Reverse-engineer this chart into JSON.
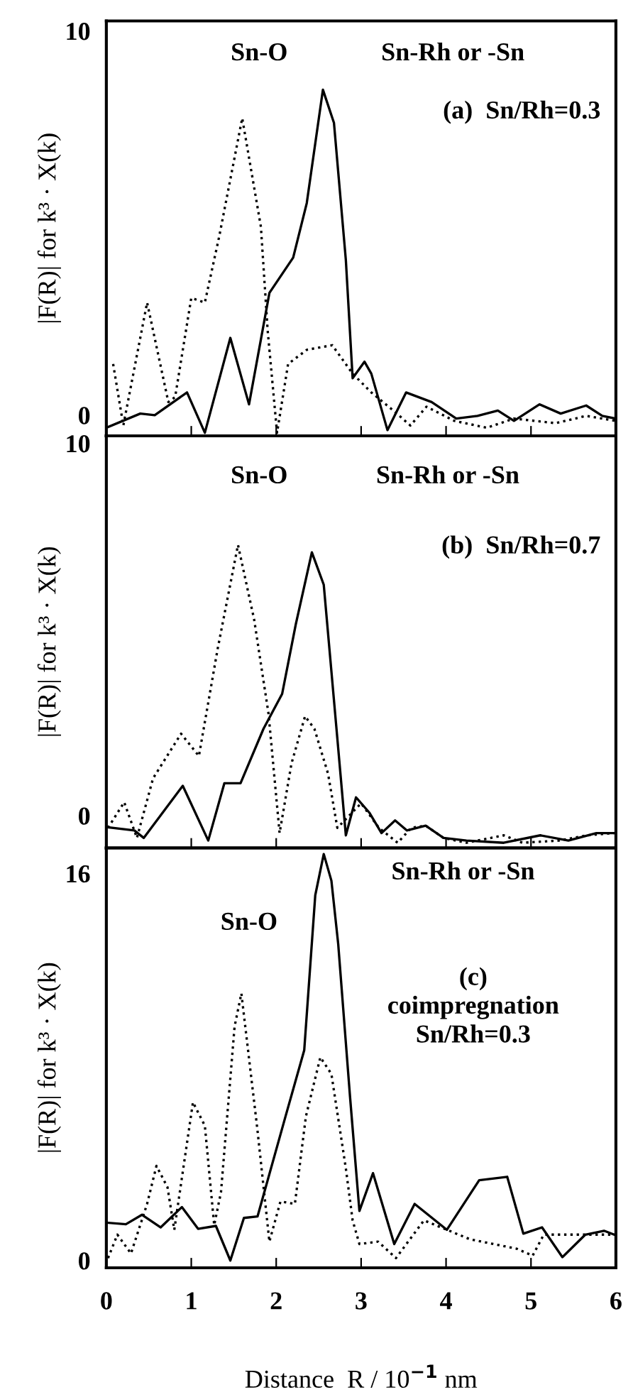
{
  "chart_data": [
    {
      "type": "line",
      "ylabel": "|F(R)| for k³ · X(k)",
      "xlim": [
        0,
        6
      ],
      "xticks": [
        0,
        1,
        2,
        3,
        4,
        5,
        6
      ],
      "ylim": [
        -0.54,
        10.26
      ],
      "yticks": [
        0,
        10
      ],
      "tick_labels": "y",
      "annotations": [
        "Sn-O",
        "Sn-Rh or -Sn",
        "(a)  Sn/Rh=0.3"
      ],
      "series": [
        {
          "color": "#000000",
          "line_style": "dotted",
          "x": [
            0.08,
            0.2,
            0.48,
            0.73,
            0.81,
            1.0,
            1.16,
            1.33,
            1.6,
            1.82,
            1.9,
            2.01,
            2.14,
            2.36,
            2.66,
            2.9,
            3.12,
            3.39,
            3.58,
            3.77,
            4.1,
            4.48,
            4.8,
            5.29,
            5.65,
            6.0
          ],
          "values": [
            1.33,
            -0.27,
            2.93,
            0.34,
            0.47,
            3.05,
            2.93,
            4.66,
            7.73,
            4.9,
            2.19,
            -0.46,
            1.33,
            1.7,
            1.82,
            1.08,
            0.59,
            0.1,
            -0.27,
            0.22,
            -0.15,
            -0.33,
            -0.09,
            -0.21,
            -0.02,
            -0.15
          ]
        },
        {
          "color": "#000000",
          "line_style": "solid",
          "x": [
            0.0,
            0.4,
            0.57,
            0.95,
            1.16,
            1.46,
            1.68,
            1.92,
            2.2,
            2.36,
            2.55,
            2.68,
            2.82,
            2.9,
            3.04,
            3.12,
            3.31,
            3.53,
            3.83,
            4.12,
            4.37,
            4.61,
            4.8,
            5.1,
            5.35,
            5.65,
            5.84,
            6.0
          ],
          "values": [
            -0.33,
            0.04,
            0.0,
            0.59,
            -0.46,
            2.01,
            0.28,
            3.18,
            4.1,
            5.52,
            8.47,
            7.61,
            4.04,
            0.96,
            1.39,
            1.08,
            -0.39,
            0.59,
            0.34,
            -0.09,
            -0.02,
            0.12,
            -0.15,
            0.28,
            0.04,
            0.25,
            -0.02,
            -0.09
          ]
        }
      ]
    },
    {
      "type": "line",
      "ylabel": "|F(R)| for k³ · X(k)",
      "xlim": [
        0,
        6
      ],
      "xticks": [
        0,
        1,
        2,
        3,
        4,
        5,
        6
      ],
      "ylim": [
        -0.87,
        10.2
      ],
      "yticks": [
        0,
        10
      ],
      "tick_labels": "y",
      "annotations": [
        "Sn-O",
        "Sn-Rh or -Sn",
        "(b)  Sn/Rh=0.7"
      ],
      "series": [
        {
          "color": "#000000",
          "line_style": "dotted",
          "x": [
            0.02,
            0.21,
            0.36,
            0.55,
            0.88,
            1.09,
            1.31,
            1.55,
            1.74,
            1.91,
            2.04,
            2.18,
            2.34,
            2.45,
            2.61,
            2.72,
            3.0,
            3.21,
            3.43,
            3.59,
            3.76,
            3.97,
            4.24,
            4.68,
            4.9,
            5.33,
            5.66,
            5.98
          ],
          "values": [
            -0.33,
            0.36,
            -0.6,
            1.0,
            2.2,
            1.6,
            4.47,
            7.27,
            5.27,
            2.73,
            -0.47,
            1.4,
            2.67,
            2.33,
            1.13,
            -0.33,
            0.33,
            -0.33,
            -0.73,
            -0.33,
            -0.27,
            -0.6,
            -0.73,
            -0.53,
            -0.73,
            -0.67,
            -0.53,
            -0.47
          ]
        },
        {
          "color": "#000000",
          "line_style": "solid",
          "x": [
            0.0,
            0.33,
            0.44,
            0.9,
            1.2,
            1.39,
            1.58,
            1.85,
            2.07,
            2.23,
            2.42,
            2.56,
            2.72,
            2.82,
            2.94,
            3.1,
            3.24,
            3.4,
            3.54,
            3.76,
            3.97,
            4.24,
            4.68,
            5.11,
            5.44,
            5.77,
            5.98
          ],
          "values": [
            -0.31,
            -0.4,
            -0.6,
            0.8,
            -0.67,
            0.87,
            0.87,
            2.33,
            3.27,
            5.13,
            7.07,
            6.2,
            2.07,
            -0.53,
            0.49,
            0.07,
            -0.47,
            -0.13,
            -0.4,
            -0.27,
            -0.6,
            -0.67,
            -0.73,
            -0.53,
            -0.67,
            -0.47,
            -0.47
          ]
        }
      ]
    },
    {
      "type": "line",
      "ylabel": "|F(R)| for k³ · X(k)",
      "xlabel": "Distance  R / 10$^{−1}$ nm",
      "xlim": [
        0,
        6
      ],
      "xticks": [
        0,
        1,
        2,
        3,
        4,
        5,
        6
      ],
      "ylim": [
        -0.3,
        17.05
      ],
      "yticks": [
        0,
        16
      ],
      "annotations": [
        "Sn-O",
        "Sn-Rh or -Sn",
        "(c)\ncoimpregnation\nSn/Rh=0.3"
      ],
      "series": [
        {
          "color": "#000000",
          "line_style": "dotted",
          "x": [
            0.02,
            0.13,
            0.29,
            0.48,
            0.59,
            0.72,
            0.8,
            1.02,
            1.16,
            1.27,
            1.35,
            1.51,
            1.59,
            1.78,
            1.92,
            2.05,
            2.22,
            2.35,
            2.52,
            2.65,
            2.82,
            2.9,
            2.98,
            3.2,
            3.41,
            3.74,
            4.28,
            4.83,
            5.02,
            5.15,
            5.64,
            6.0
          ],
          "values": [
            0.1,
            1.07,
            0.29,
            2.34,
            3.91,
            3.03,
            1.27,
            6.54,
            5.57,
            1.46,
            2.83,
            9.67,
            11.04,
            5.37,
            0.78,
            2.44,
            2.34,
            5.96,
            8.4,
            7.71,
            3.81,
            1.66,
            0.68,
            0.78,
            0.1,
            1.66,
            0.88,
            0.49,
            0.2,
            1.07,
            1.07,
            1.07
          ]
        },
        {
          "color": "#000000",
          "line_style": "solid",
          "x": [
            0.02,
            0.23,
            0.42,
            0.64,
            0.89,
            1.08,
            1.29,
            1.46,
            1.62,
            1.78,
            2.11,
            2.33,
            2.46,
            2.56,
            2.65,
            2.73,
            2.87,
            2.98,
            3.14,
            3.39,
            3.63,
            4.01,
            4.39,
            4.72,
            4.91,
            5.13,
            5.37,
            5.64,
            5.86,
            6.0
          ],
          "values": [
            1.56,
            1.5,
            1.89,
            1.37,
            2.21,
            1.31,
            1.43,
            0.0,
            1.76,
            1.82,
            5.96,
            8.69,
            15.1,
            16.8,
            15.7,
            13.09,
            6.74,
            2.05,
            3.61,
            0.68,
            2.34,
            1.27,
            3.32,
            3.46,
            1.11,
            1.37,
            0.14,
            1.07,
            1.23,
            1.04
          ]
        }
      ]
    }
  ]
}
